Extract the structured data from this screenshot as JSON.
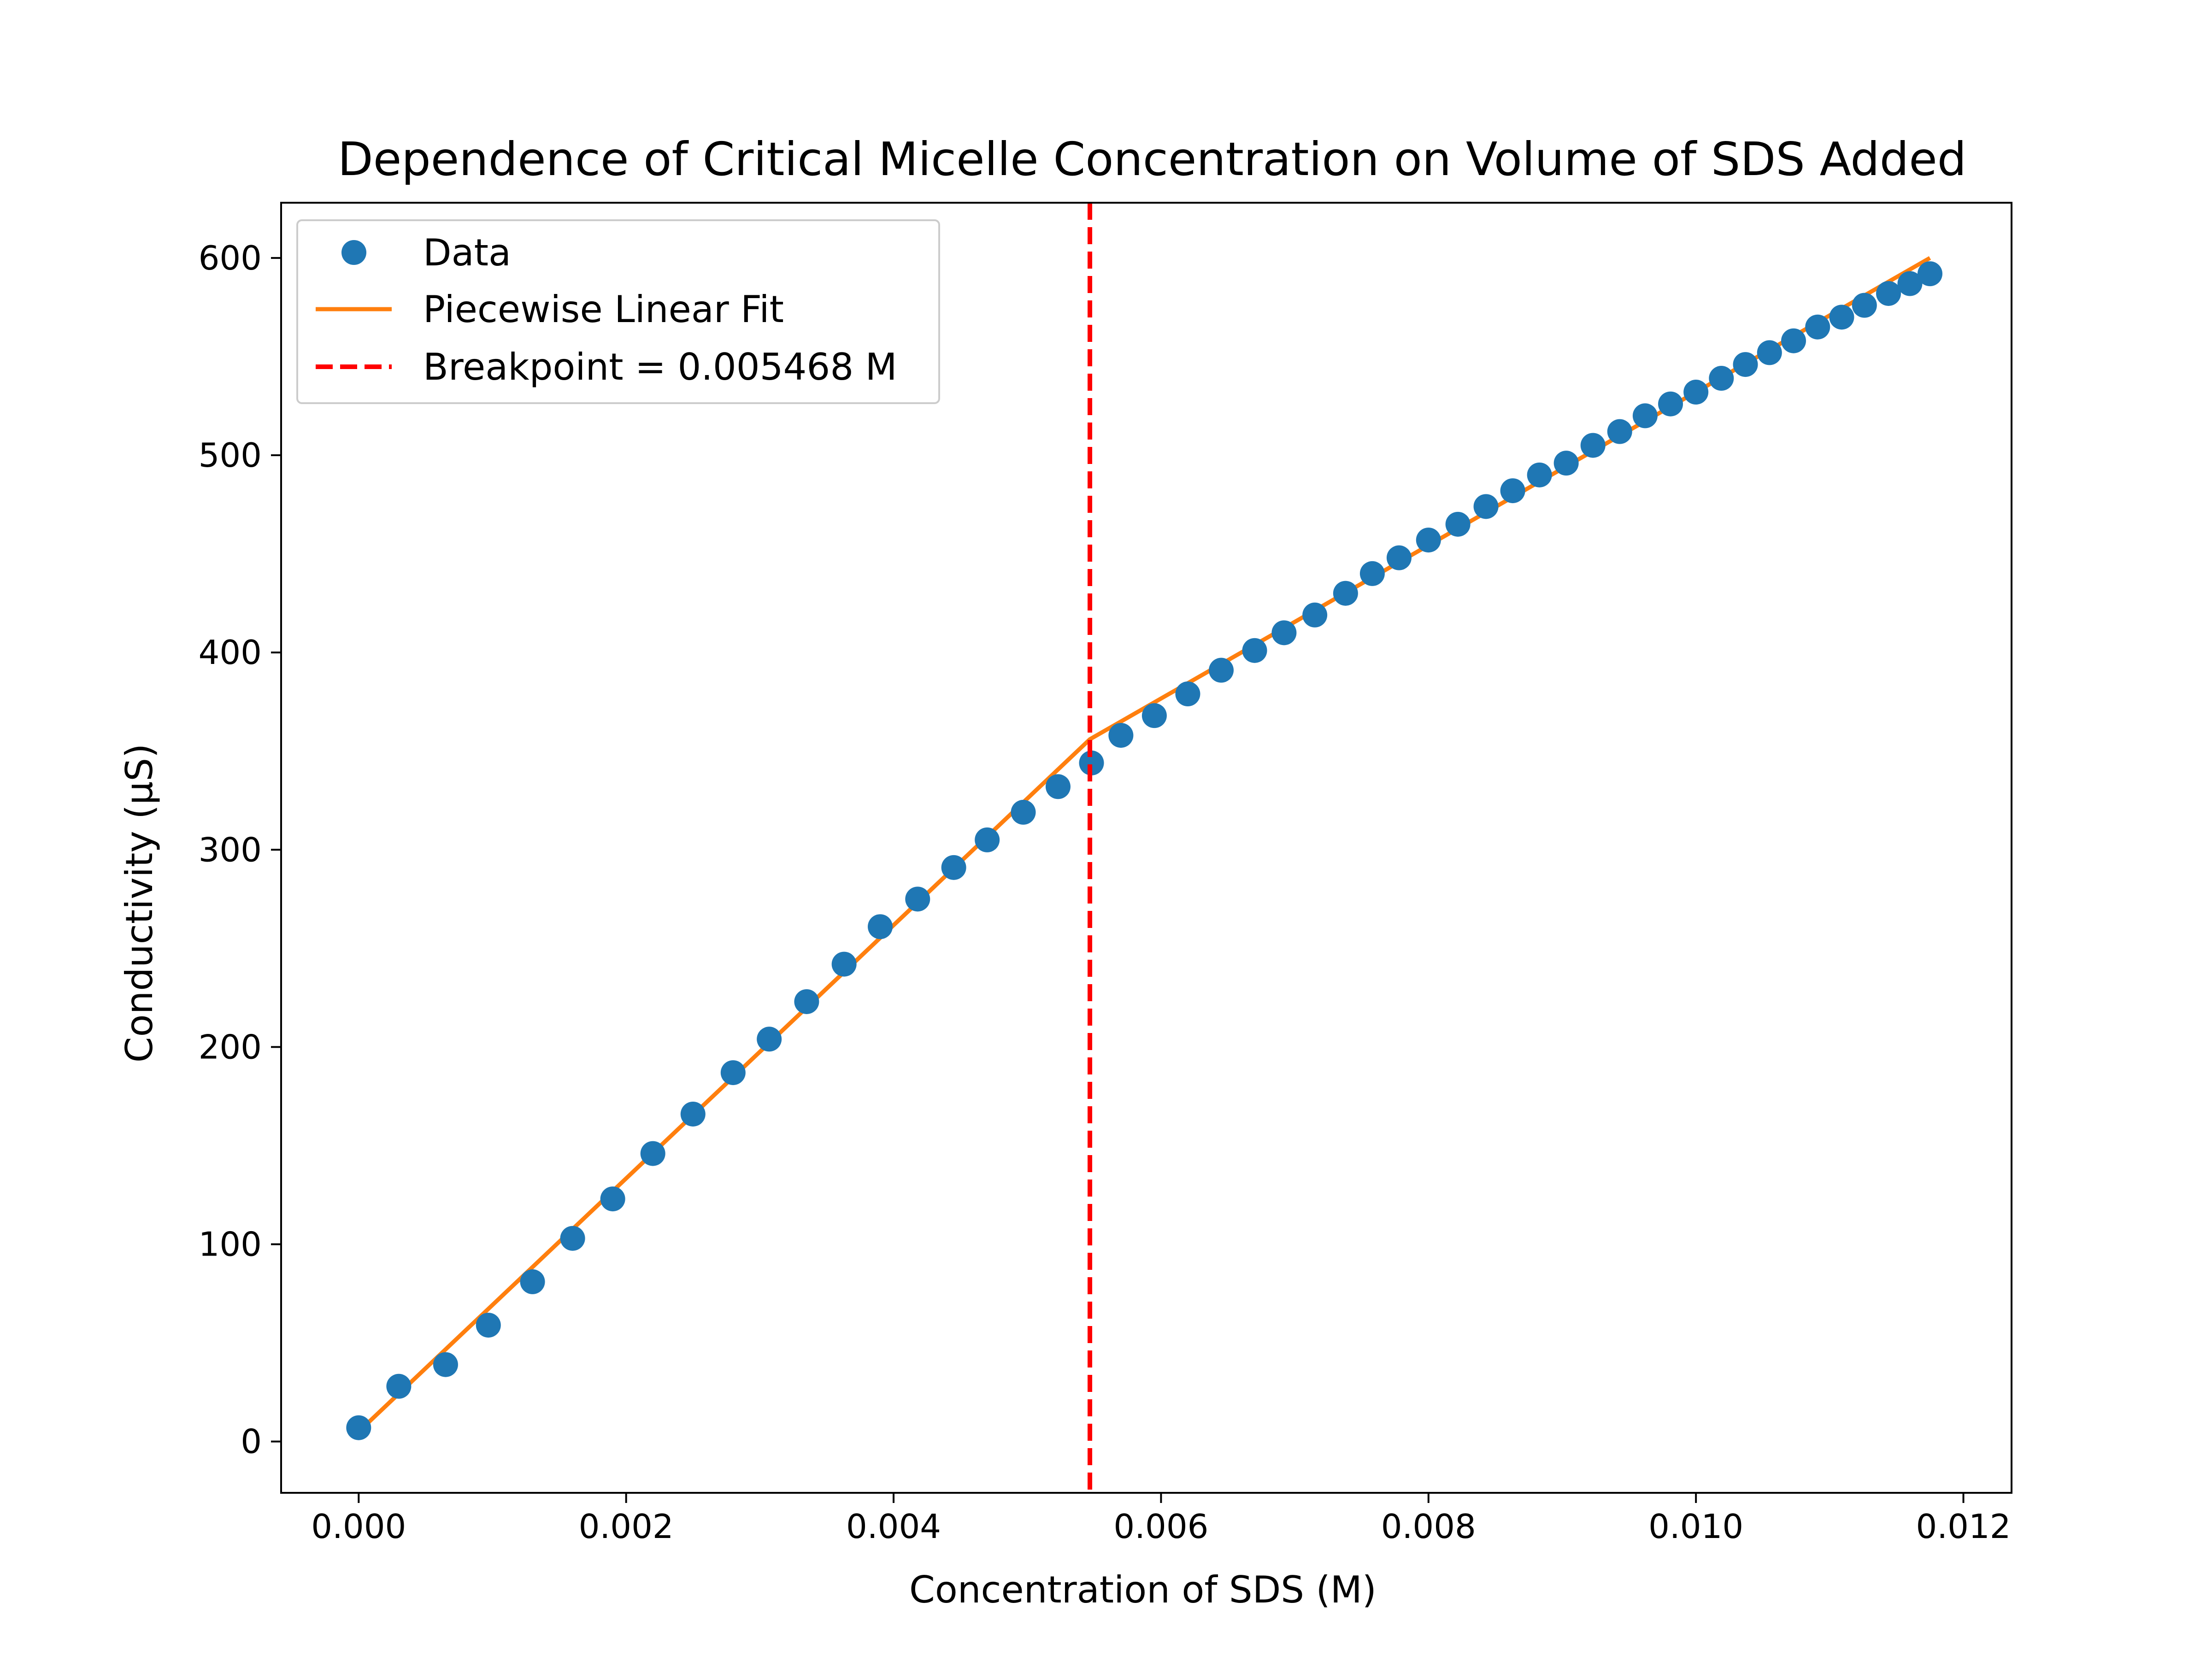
{
  "chart_data": {
    "type": "scatter",
    "title": "Dependence of Critical Micelle Concentration on Volume of SDS Added",
    "xlabel": "Concentration of SDS (M)",
    "ylabel": "Conductivity (µS)",
    "xlim": [
      -0.00058,
      0.01236
    ],
    "ylim": [
      -26,
      628
    ],
    "x_ticks": [
      0.0,
      0.002,
      0.004,
      0.006,
      0.008,
      0.01,
      0.012
    ],
    "x_tick_labels": [
      "0.000",
      "0.002",
      "0.004",
      "0.006",
      "0.008",
      "0.010",
      "0.012"
    ],
    "y_ticks": [
      0,
      100,
      200,
      300,
      400,
      500,
      600
    ],
    "y_tick_labels": [
      "0",
      "100",
      "200",
      "300",
      "400",
      "500",
      "600"
    ],
    "grid": false,
    "legend_position": "top-left",
    "series": [
      {
        "name": "Data",
        "kind": "scatter",
        "color": "#1f77b4",
        "x": [
          0.0,
          0.0003,
          0.00065,
          0.00097,
          0.0013,
          0.0016,
          0.0019,
          0.0022,
          0.0025,
          0.0028,
          0.00307,
          0.00335,
          0.00363,
          0.0039,
          0.00418,
          0.00445,
          0.0047,
          0.00497,
          0.00523,
          0.00548,
          0.0057,
          0.00595,
          0.0062,
          0.00645,
          0.0067,
          0.00692,
          0.00715,
          0.00738,
          0.00758,
          0.00778,
          0.008,
          0.00822,
          0.00843,
          0.00863,
          0.00883,
          0.00903,
          0.00923,
          0.00943,
          0.00962,
          0.00981,
          0.01,
          0.01019,
          0.01037,
          0.01055,
          0.01073,
          0.01091,
          0.01109,
          0.01126,
          0.01144,
          0.0116,
          0.01175
        ],
        "y": [
          7,
          28,
          39,
          59,
          81,
          103,
          123,
          146,
          166,
          187,
          204,
          223,
          242,
          261,
          275,
          291,
          305,
          319,
          332,
          344,
          358,
          368,
          379,
          391,
          401,
          410,
          419,
          430,
          440,
          448,
          457,
          465,
          474,
          482,
          490,
          496,
          505,
          512,
          520,
          526,
          532,
          539,
          546,
          552,
          558,
          565,
          570,
          576,
          582,
          587,
          592
        ]
      },
      {
        "name": "Piecewise Linear Fit",
        "kind": "line",
        "color": "#ff7f0e",
        "x": [
          0.0,
          0.005468,
          0.01175
        ],
        "y": [
          5,
          356,
          600
        ]
      },
      {
        "name": "Breakpoint = 0.005468 M",
        "kind": "vline",
        "color": "#ff0000",
        "x": 0.005468
      }
    ]
  }
}
